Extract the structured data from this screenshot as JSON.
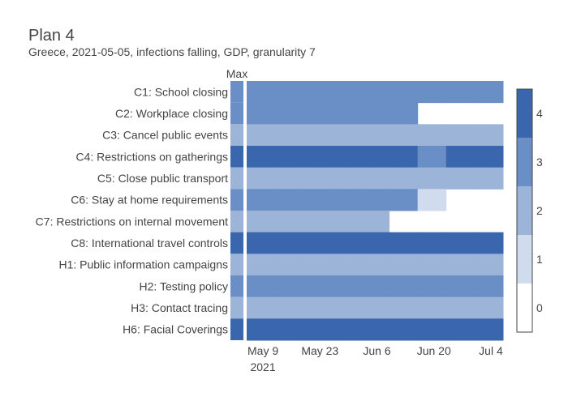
{
  "chart_data": {
    "type": "heatmap",
    "title": "Plan 4",
    "subtitle": "Greece, 2021-05-05, infections falling, GDP, granularity 7",
    "max_column_label": "Max",
    "rows": [
      "C1: School closing",
      "C2: Workplace closing",
      "C3: Cancel public events",
      "C4: Restrictions on gatherings",
      "C5: Close public transport",
      "C6: Stay at home requirements",
      "C7: Restrictions on internal movement",
      "C8: International travel controls",
      "H1: Public information campaigns",
      "H2: Testing policy",
      "H3: Contact tracing",
      "H6: Facial Coverings"
    ],
    "max_values": [
      3,
      3,
      2,
      4,
      2,
      3,
      2,
      4,
      2,
      3,
      2,
      4
    ],
    "x_start": "2021-05-05",
    "x_end": "2021-07-07",
    "period_days": 7,
    "periods": [
      "2021-05-05",
      "2021-05-12",
      "2021-05-19",
      "2021-05-26",
      "2021-06-02",
      "2021-06-09",
      "2021-06-16",
      "2021-06-23",
      "2021-06-30"
    ],
    "values": [
      [
        3,
        3,
        3,
        3,
        3,
        3,
        3,
        3,
        3
      ],
      [
        3,
        3,
        3,
        3,
        3,
        3,
        null,
        null,
        null
      ],
      [
        2,
        2,
        2,
        2,
        2,
        2,
        2,
        2,
        2
      ],
      [
        4,
        4,
        4,
        4,
        4,
        4,
        3,
        4,
        4
      ],
      [
        2,
        2,
        2,
        2,
        2,
        2,
        2,
        2,
        2
      ],
      [
        3,
        3,
        3,
        3,
        3,
        3,
        1,
        null,
        null
      ],
      [
        2,
        2,
        2,
        2,
        2,
        null,
        null,
        null,
        null
      ],
      [
        4,
        4,
        4,
        4,
        4,
        4,
        4,
        4,
        4
      ],
      [
        2,
        2,
        2,
        2,
        2,
        2,
        2,
        2,
        2
      ],
      [
        3,
        3,
        3,
        3,
        3,
        3,
        3,
        3,
        3
      ],
      [
        2,
        2,
        2,
        2,
        2,
        2,
        2,
        2,
        2
      ],
      [
        4,
        4,
        4,
        4,
        4,
        4,
        4,
        4,
        4
      ]
    ],
    "x_ticks": [
      {
        "date": "2021-05-09",
        "label": "May 9",
        "sublabel": "2021"
      },
      {
        "date": "2021-05-23",
        "label": "May 23",
        "sublabel": ""
      },
      {
        "date": "2021-06-06",
        "label": "Jun 6",
        "sublabel": ""
      },
      {
        "date": "2021-06-20",
        "label": "Jun 20",
        "sublabel": ""
      },
      {
        "date": "2021-07-04",
        "label": "Jul 4",
        "sublabel": ""
      }
    ],
    "colorscale": {
      "0": "#ffffff",
      "1": "#d0dced",
      "2": "#9cb4d8",
      "3": "#6a8ec6",
      "4": "#3a66ae"
    },
    "colorbar": {
      "ticks": [
        "0",
        "1",
        "2",
        "3",
        "4"
      ],
      "range": [
        -0.5,
        4.5
      ],
      "placement": "right"
    }
  }
}
